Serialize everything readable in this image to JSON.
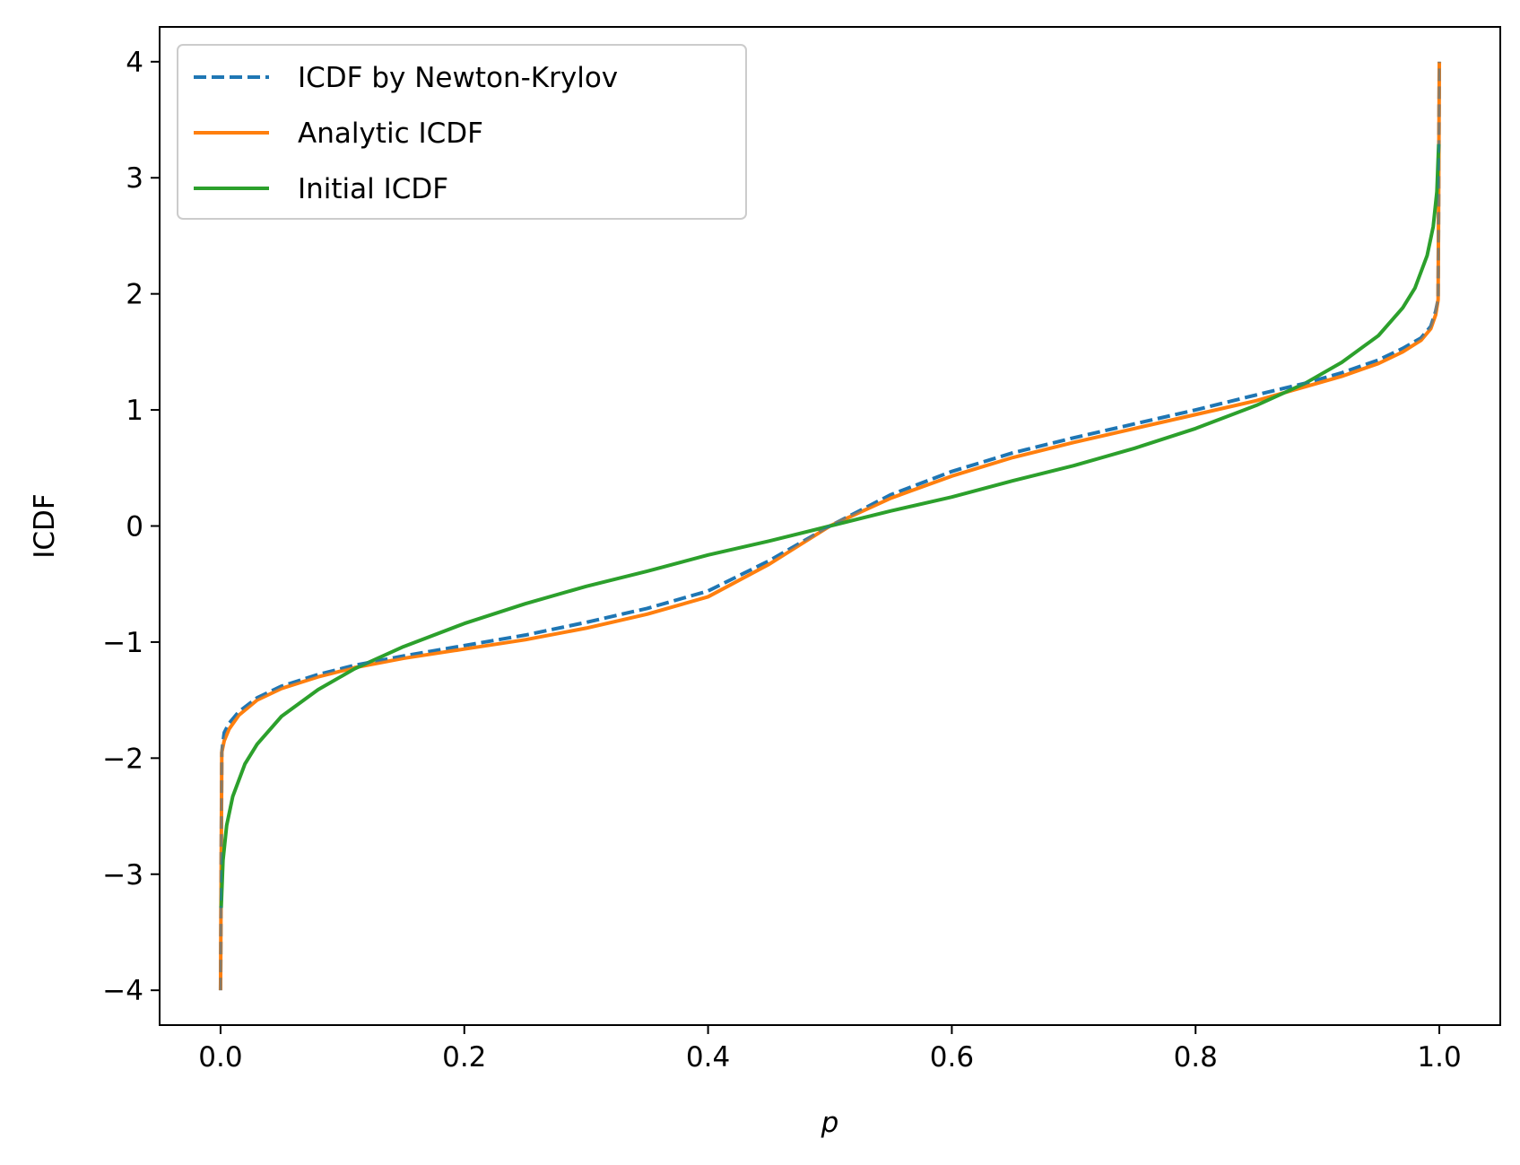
{
  "chart_data": {
    "type": "line",
    "title": "",
    "xlabel": "p",
    "ylabel": "ICDF",
    "xlim": [
      -0.05,
      1.05
    ],
    "ylim": [
      -4.3,
      4.3
    ],
    "x_ticks": [
      0.0,
      0.2,
      0.4,
      0.6,
      0.8,
      1.0
    ],
    "x_tick_labels": [
      "0.0",
      "0.2",
      "0.4",
      "0.6",
      "0.8",
      "1.0"
    ],
    "y_ticks": [
      -4,
      -3,
      -2,
      -1,
      0,
      1,
      2,
      3,
      4
    ],
    "y_tick_labels": [
      "−4",
      "−3",
      "−2",
      "−1",
      "0",
      "1",
      "2",
      "3",
      "4"
    ],
    "grid": false,
    "legend_position": "top-left",
    "series": [
      {
        "name": "ICDF by Newton-Krylov",
        "color": "#1f77b4",
        "style": "dashed",
        "x": [
          0.0,
          0.001,
          0.003,
          0.007,
          0.015,
          0.03,
          0.05,
          0.08,
          0.11,
          0.15,
          0.2,
          0.25,
          0.3,
          0.35,
          0.4,
          0.45,
          0.5,
          0.55,
          0.6,
          0.65,
          0.7,
          0.75,
          0.8,
          0.85,
          0.89,
          0.92,
          0.95,
          0.97,
          0.985,
          0.993,
          0.997,
          0.999,
          1.0
        ],
        "y": [
          -4.0,
          -1.95,
          -1.78,
          -1.7,
          -1.6,
          -1.48,
          -1.38,
          -1.28,
          -1.2,
          -1.12,
          -1.03,
          -0.94,
          -0.83,
          -0.71,
          -0.56,
          -0.3,
          0.0,
          0.27,
          0.47,
          0.63,
          0.76,
          0.88,
          1.0,
          1.13,
          1.23,
          1.32,
          1.43,
          1.53,
          1.62,
          1.72,
          1.85,
          1.95,
          4.0
        ]
      },
      {
        "name": "Analytic ICDF",
        "color": "#ff7f0e",
        "style": "solid",
        "x": [
          0.0,
          0.001,
          0.003,
          0.007,
          0.015,
          0.03,
          0.05,
          0.08,
          0.11,
          0.15,
          0.2,
          0.25,
          0.3,
          0.35,
          0.4,
          0.45,
          0.5,
          0.55,
          0.6,
          0.65,
          0.7,
          0.75,
          0.8,
          0.85,
          0.89,
          0.92,
          0.95,
          0.97,
          0.985,
          0.993,
          0.997,
          0.999,
          1.0
        ],
        "y": [
          -4.0,
          -1.95,
          -1.85,
          -1.75,
          -1.63,
          -1.5,
          -1.4,
          -1.3,
          -1.22,
          -1.14,
          -1.06,
          -0.98,
          -0.88,
          -0.76,
          -0.61,
          -0.33,
          0.0,
          0.24,
          0.43,
          0.59,
          0.72,
          0.84,
          0.96,
          1.08,
          1.2,
          1.29,
          1.4,
          1.5,
          1.6,
          1.7,
          1.82,
          1.95,
          4.0
        ]
      },
      {
        "name": "Initial ICDF",
        "color": "#2ca02c",
        "style": "solid",
        "x": [
          0.0005,
          0.002,
          0.005,
          0.01,
          0.02,
          0.03,
          0.05,
          0.08,
          0.11,
          0.15,
          0.2,
          0.25,
          0.3,
          0.35,
          0.4,
          0.45,
          0.5,
          0.55,
          0.6,
          0.65,
          0.7,
          0.75,
          0.8,
          0.85,
          0.89,
          0.92,
          0.95,
          0.97,
          0.98,
          0.99,
          0.995,
          0.998,
          0.9995
        ],
        "y": [
          -3.29,
          -2.88,
          -2.58,
          -2.33,
          -2.05,
          -1.88,
          -1.64,
          -1.41,
          -1.23,
          -1.04,
          -0.84,
          -0.67,
          -0.52,
          -0.39,
          -0.25,
          -0.13,
          0.0,
          0.13,
          0.25,
          0.39,
          0.52,
          0.67,
          0.84,
          1.04,
          1.23,
          1.41,
          1.64,
          1.88,
          2.05,
          2.33,
          2.58,
          2.88,
          3.29
        ]
      }
    ]
  }
}
